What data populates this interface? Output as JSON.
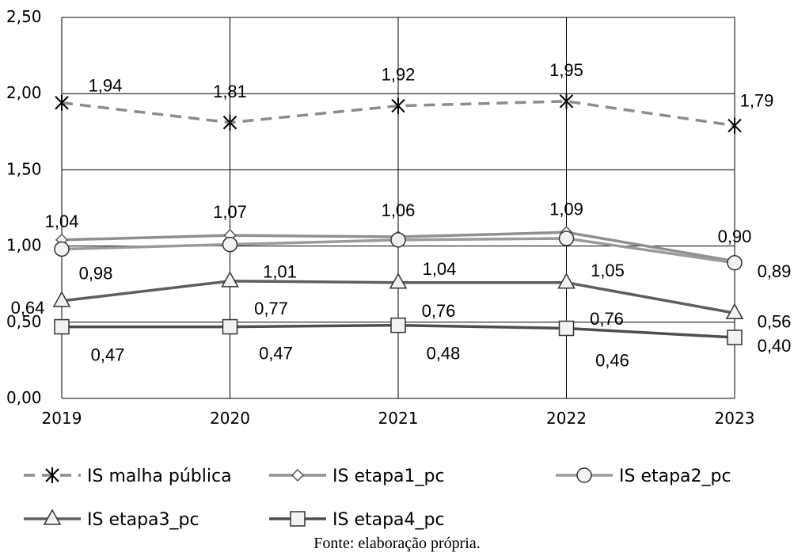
{
  "chart_data": {
    "type": "line",
    "categories": [
      "2019",
      "2020",
      "2021",
      "2022",
      "2023"
    ],
    "y_ticks": [
      "0,00",
      "0,50",
      "1,00",
      "1,50",
      "2,00",
      "2,50"
    ],
    "ylim": [
      0,
      2.5
    ],
    "grid": true,
    "legend_position": "bottom",
    "series": [
      {
        "name": "IS malha pública",
        "marker": "asterisk",
        "dashed": true,
        "color": "#8c8c8c",
        "values": [
          1.94,
          1.81,
          1.92,
          1.95,
          1.79
        ],
        "labels": [
          "1,94",
          "1,81",
          "1,92",
          "1,95",
          "1,79"
        ]
      },
      {
        "name": "IS etapa1_pc",
        "marker": "diamond",
        "dashed": false,
        "color": "#909090",
        "values": [
          1.04,
          1.07,
          1.06,
          1.09,
          0.9
        ],
        "labels": [
          "1,04",
          "1,07",
          "1,06",
          "1,09",
          "0,90"
        ]
      },
      {
        "name": "IS etapa2_pc",
        "marker": "circle",
        "dashed": false,
        "color": "#9a9a9a",
        "values": [
          0.98,
          1.01,
          1.04,
          1.05,
          0.89
        ],
        "labels": [
          "0,98",
          "1,01",
          "1,04",
          "1,05",
          "0,89"
        ]
      },
      {
        "name": "IS etapa3_pc",
        "marker": "triangle",
        "dashed": false,
        "color": "#5e5e5e",
        "values": [
          0.64,
          0.77,
          0.76,
          0.76,
          0.56
        ],
        "labels": [
          "0,64",
          "0,77",
          "0,76",
          "0,76",
          "0,56"
        ]
      },
      {
        "name": "IS etapa4_pc",
        "marker": "square",
        "dashed": false,
        "color": "#4e4e4e",
        "values": [
          0.47,
          0.47,
          0.48,
          0.46,
          0.4
        ],
        "labels": [
          "0,47",
          "0,47",
          "0,48",
          "0,46",
          "0,40"
        ]
      }
    ]
  },
  "caption": "Fonte: elaboração própria."
}
